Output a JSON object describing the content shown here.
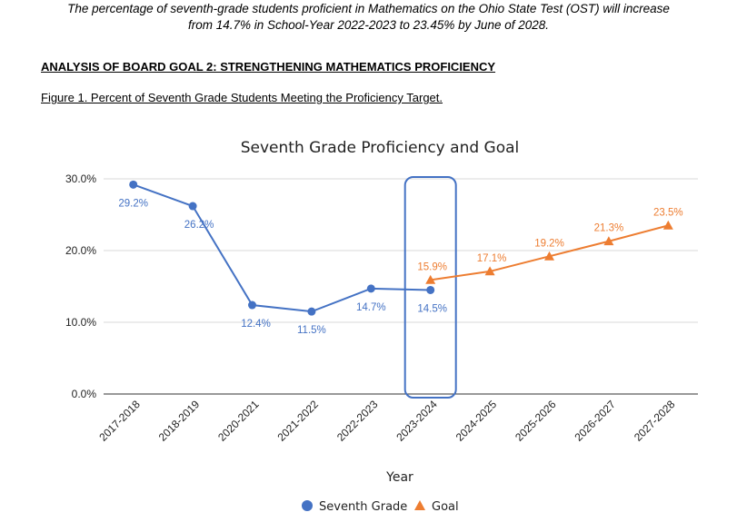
{
  "intro": {
    "line1": "The percentage of seventh-grade students proficient in Mathematics on the Ohio State Test (OST) will increase",
    "line2": "from 14.7%  in School-Year 2022-2023 to 23.45% by June of 2028."
  },
  "section_heading": "ANALYSIS OF BOARD GOAL 2: STRENGTHENING MATHEMATICS PROFICIENCY",
  "figure_caption": "Figure 1. Percent of Seventh Grade Students Meeting the Proficiency Target.",
  "chart_data": {
    "type": "line",
    "title": "Seventh Grade Proficiency and Goal",
    "xlabel": "Year",
    "ylabel": "",
    "ylim": [
      0,
      30
    ],
    "yticks": [
      "0.0%",
      "10.0%",
      "20.0%",
      "30.0%"
    ],
    "grid": true,
    "legend_position": "bottom",
    "categories": [
      "2017-2018",
      "2018-2019",
      "2020-2021",
      "2021-2022",
      "2022-2023",
      "2023-2024",
      "2024-2025",
      "2025-2026",
      "2026-2027",
      "2027-2028"
    ],
    "highlighted_category": "2023-2024",
    "series": [
      {
        "name": "Seventh Grade",
        "color": "#4472c4",
        "marker": "circle",
        "values": [
          29.2,
          26.2,
          12.4,
          11.5,
          14.7,
          14.5,
          null,
          null,
          null,
          null
        ],
        "labels": [
          "29.2%",
          "26.2%",
          "12.4%",
          "11.5%",
          "14.7%",
          "14.5%",
          "",
          "",
          "",
          ""
        ]
      },
      {
        "name": "Goal",
        "color": "#ed7d31",
        "marker": "triangle",
        "values": [
          null,
          null,
          null,
          null,
          null,
          15.9,
          17.1,
          19.2,
          21.3,
          23.5
        ],
        "labels": [
          "",
          "",
          "",
          "",
          "",
          "15.9%",
          "17.1%",
          "19.2%",
          "21.3%",
          "23.5%"
        ]
      }
    ]
  }
}
